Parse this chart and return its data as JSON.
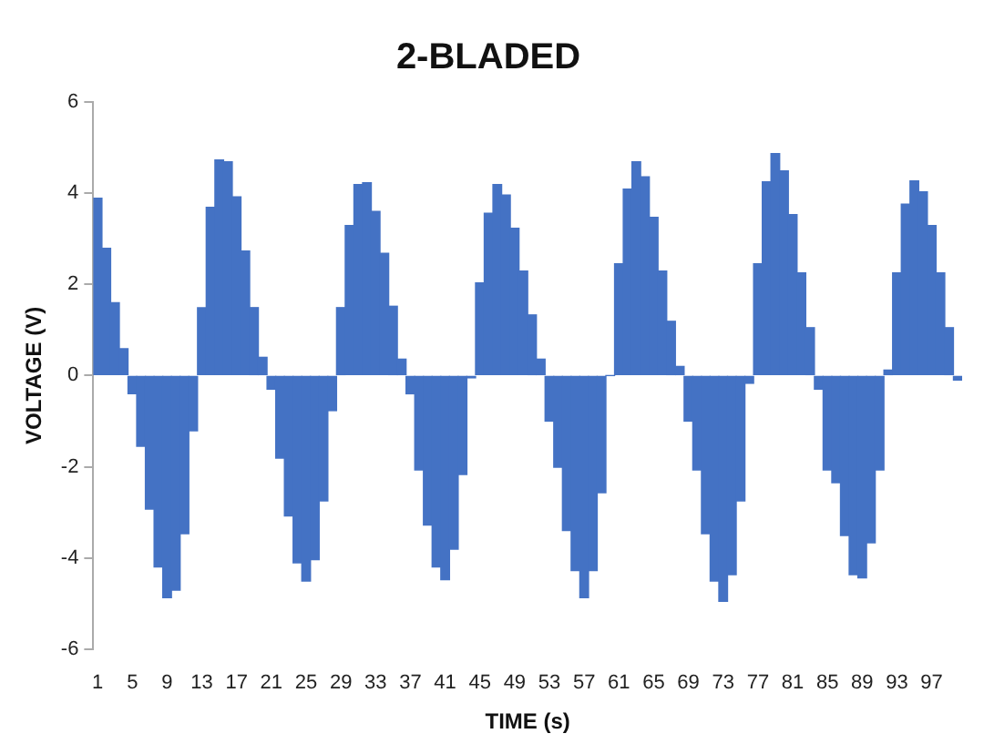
{
  "chart_data": {
    "type": "bar",
    "title": "2-BLADED",
    "xlabel": "TIME (s)",
    "ylabel": "VOLTAGE (V)",
    "categories": [
      "1",
      null,
      null,
      null,
      "5",
      null,
      null,
      null,
      "9",
      null,
      null,
      null,
      "13",
      null,
      null,
      null,
      "17",
      null,
      null,
      null,
      "21",
      null,
      null,
      null,
      "25",
      null,
      null,
      null,
      "29",
      null,
      null,
      null,
      "33",
      null,
      null,
      null,
      "37",
      null,
      null,
      null,
      "41",
      null,
      null,
      null,
      "45",
      null,
      null,
      null,
      "49",
      null,
      null,
      null,
      "53",
      null,
      null,
      null,
      "57",
      null,
      null,
      null,
      "61",
      null,
      null,
      null,
      "65",
      null,
      null,
      null,
      "69",
      null,
      null,
      null,
      "73",
      null,
      null,
      null,
      "77",
      null,
      null,
      null,
      "81",
      null,
      null,
      null,
      "85",
      null,
      null,
      null,
      "89",
      null,
      null,
      null,
      "93",
      null,
      null,
      null,
      "97",
      null,
      null,
      null
    ],
    "values": [
      3.89,
      2.79,
      1.6,
      0.59,
      -0.4,
      -1.55,
      -2.93,
      -4.2,
      -4.87,
      -4.71,
      -3.47,
      -1.21,
      1.49,
      3.69,
      4.73,
      4.69,
      3.92,
      2.73,
      1.49,
      0.4,
      -0.3,
      -1.81,
      -3.08,
      -4.11,
      -4.51,
      -4.04,
      -2.75,
      -0.77,
      1.49,
      3.29,
      4.19,
      4.23,
      3.6,
      2.68,
      1.52,
      0.36,
      -0.4,
      -2.07,
      -3.28,
      -4.2,
      -4.48,
      -3.81,
      -2.17,
      -0.05,
      2.03,
      3.56,
      4.19,
      3.96,
      3.23,
      2.29,
      1.33,
      0.36,
      -1.0,
      -2.01,
      -3.4,
      -4.28,
      -4.87,
      -4.28,
      -2.57,
      0,
      2.45,
      4.09,
      4.69,
      4.36,
      3.47,
      2.29,
      1.19,
      0.2,
      -1.0,
      -2.07,
      -3.47,
      -4.51,
      -4.95,
      -4.37,
      -2.75,
      -0.17,
      2.45,
      4.25,
      4.87,
      4.49,
      3.53,
      2.25,
      1.05,
      -0.3,
      -2.07,
      -2.35,
      -3.51,
      -4.37,
      -4.44,
      -3.67,
      -2.07,
      0.12,
      2.25,
      3.76,
      4.27,
      4.03,
      3.29,
      2.25,
      1.05,
      -0.1
    ],
    "color": "#4472c4",
    "ylim": [
      -6,
      6
    ],
    "yticks": [
      -6,
      -4,
      -2,
      0,
      2,
      4,
      6
    ],
    "grid": false,
    "legend": false
  }
}
